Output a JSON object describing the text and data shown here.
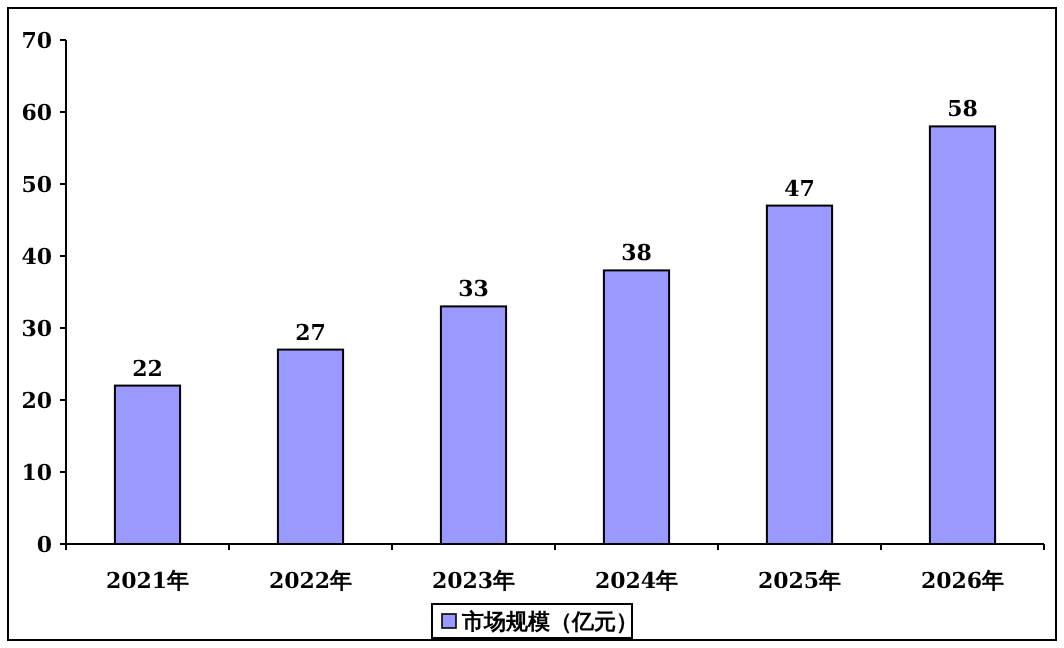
{
  "chart_data": {
    "type": "bar",
    "categories": [
      "2021年",
      "2022年",
      "2023年",
      "2024年",
      "2025年",
      "2026年"
    ],
    "series": [
      {
        "name": "市场规模（亿元）",
        "color": "#9999ff",
        "values": [
          22,
          27,
          33,
          38,
          47,
          58
        ]
      }
    ],
    "ylim": [
      0,
      70
    ],
    "yticks": [
      0,
      10,
      20,
      30,
      40,
      50,
      60,
      70
    ],
    "data_labels": true,
    "legend": "bottom",
    "grid": false
  }
}
